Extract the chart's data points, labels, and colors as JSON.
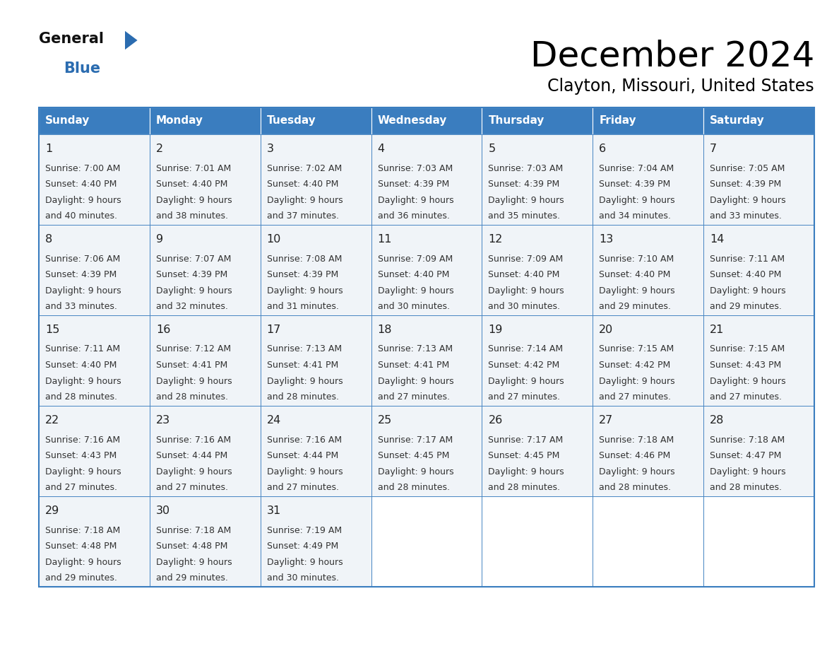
{
  "title": "December 2024",
  "subtitle": "Clayton, Missouri, United States",
  "header_bg": "#3a7dbf",
  "header_text": "#ffffff",
  "days_of_week": [
    "Sunday",
    "Monday",
    "Tuesday",
    "Wednesday",
    "Thursday",
    "Friday",
    "Saturday"
  ],
  "cell_bg": "#f0f4f8",
  "empty_cell_bg": "#ffffff",
  "border_color": "#3a7dbf",
  "day_number_color": "#222222",
  "cell_text_color": "#333333",
  "logo_general_color": "#1a1a1a",
  "logo_blue_color": "#2b6cb0",
  "calendar_data": [
    {
      "day": 1,
      "col": 0,
      "row": 0,
      "sunrise": "7:00 AM",
      "sunset": "4:40 PM",
      "minutes": "40"
    },
    {
      "day": 2,
      "col": 1,
      "row": 0,
      "sunrise": "7:01 AM",
      "sunset": "4:40 PM",
      "minutes": "38"
    },
    {
      "day": 3,
      "col": 2,
      "row": 0,
      "sunrise": "7:02 AM",
      "sunset": "4:40 PM",
      "minutes": "37"
    },
    {
      "day": 4,
      "col": 3,
      "row": 0,
      "sunrise": "7:03 AM",
      "sunset": "4:39 PM",
      "minutes": "36"
    },
    {
      "day": 5,
      "col": 4,
      "row": 0,
      "sunrise": "7:03 AM",
      "sunset": "4:39 PM",
      "minutes": "35"
    },
    {
      "day": 6,
      "col": 5,
      "row": 0,
      "sunrise": "7:04 AM",
      "sunset": "4:39 PM",
      "minutes": "34"
    },
    {
      "day": 7,
      "col": 6,
      "row": 0,
      "sunrise": "7:05 AM",
      "sunset": "4:39 PM",
      "minutes": "33"
    },
    {
      "day": 8,
      "col": 0,
      "row": 1,
      "sunrise": "7:06 AM",
      "sunset": "4:39 PM",
      "minutes": "33"
    },
    {
      "day": 9,
      "col": 1,
      "row": 1,
      "sunrise": "7:07 AM",
      "sunset": "4:39 PM",
      "minutes": "32"
    },
    {
      "day": 10,
      "col": 2,
      "row": 1,
      "sunrise": "7:08 AM",
      "sunset": "4:39 PM",
      "minutes": "31"
    },
    {
      "day": 11,
      "col": 3,
      "row": 1,
      "sunrise": "7:09 AM",
      "sunset": "4:40 PM",
      "minutes": "30"
    },
    {
      "day": 12,
      "col": 4,
      "row": 1,
      "sunrise": "7:09 AM",
      "sunset": "4:40 PM",
      "minutes": "30"
    },
    {
      "day": 13,
      "col": 5,
      "row": 1,
      "sunrise": "7:10 AM",
      "sunset": "4:40 PM",
      "minutes": "29"
    },
    {
      "day": 14,
      "col": 6,
      "row": 1,
      "sunrise": "7:11 AM",
      "sunset": "4:40 PM",
      "minutes": "29"
    },
    {
      "day": 15,
      "col": 0,
      "row": 2,
      "sunrise": "7:11 AM",
      "sunset": "4:40 PM",
      "minutes": "28"
    },
    {
      "day": 16,
      "col": 1,
      "row": 2,
      "sunrise": "7:12 AM",
      "sunset": "4:41 PM",
      "minutes": "28"
    },
    {
      "day": 17,
      "col": 2,
      "row": 2,
      "sunrise": "7:13 AM",
      "sunset": "4:41 PM",
      "minutes": "28"
    },
    {
      "day": 18,
      "col": 3,
      "row": 2,
      "sunrise": "7:13 AM",
      "sunset": "4:41 PM",
      "minutes": "27"
    },
    {
      "day": 19,
      "col": 4,
      "row": 2,
      "sunrise": "7:14 AM",
      "sunset": "4:42 PM",
      "minutes": "27"
    },
    {
      "day": 20,
      "col": 5,
      "row": 2,
      "sunrise": "7:15 AM",
      "sunset": "4:42 PM",
      "minutes": "27"
    },
    {
      "day": 21,
      "col": 6,
      "row": 2,
      "sunrise": "7:15 AM",
      "sunset": "4:43 PM",
      "minutes": "27"
    },
    {
      "day": 22,
      "col": 0,
      "row": 3,
      "sunrise": "7:16 AM",
      "sunset": "4:43 PM",
      "minutes": "27"
    },
    {
      "day": 23,
      "col": 1,
      "row": 3,
      "sunrise": "7:16 AM",
      "sunset": "4:44 PM",
      "minutes": "27"
    },
    {
      "day": 24,
      "col": 2,
      "row": 3,
      "sunrise": "7:16 AM",
      "sunset": "4:44 PM",
      "minutes": "27"
    },
    {
      "day": 25,
      "col": 3,
      "row": 3,
      "sunrise": "7:17 AM",
      "sunset": "4:45 PM",
      "minutes": "28"
    },
    {
      "day": 26,
      "col": 4,
      "row": 3,
      "sunrise": "7:17 AM",
      "sunset": "4:45 PM",
      "minutes": "28"
    },
    {
      "day": 27,
      "col": 5,
      "row": 3,
      "sunrise": "7:18 AM",
      "sunset": "4:46 PM",
      "minutes": "28"
    },
    {
      "day": 28,
      "col": 6,
      "row": 3,
      "sunrise": "7:18 AM",
      "sunset": "4:47 PM",
      "minutes": "28"
    },
    {
      "day": 29,
      "col": 0,
      "row": 4,
      "sunrise": "7:18 AM",
      "sunset": "4:48 PM",
      "minutes": "29"
    },
    {
      "day": 30,
      "col": 1,
      "row": 4,
      "sunrise": "7:18 AM",
      "sunset": "4:48 PM",
      "minutes": "29"
    },
    {
      "day": 31,
      "col": 2,
      "row": 4,
      "sunrise": "7:19 AM",
      "sunset": "4:49 PM",
      "minutes": "30"
    }
  ]
}
